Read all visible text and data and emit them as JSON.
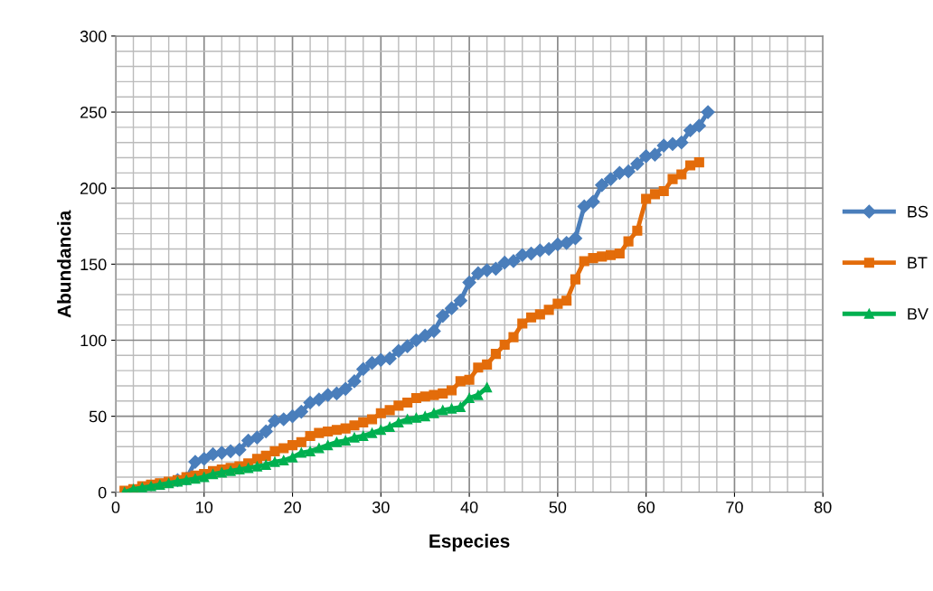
{
  "chart_data": {
    "type": "line",
    "xlabel": "Especies",
    "ylabel": "Abundancia",
    "xlim": [
      0,
      80
    ],
    "xticks": [
      0,
      10,
      20,
      30,
      40,
      50,
      60,
      70,
      80
    ],
    "ylim": [
      0,
      300
    ],
    "yticks": [
      0,
      50,
      100,
      150,
      200,
      250,
      300
    ],
    "grid": true,
    "legend": "right",
    "line_style": "solid",
    "series": [
      {
        "name": "BS",
        "color": "#4a7ebb",
        "marker": "diamond",
        "x": [
          7,
          8,
          9,
          10,
          11,
          12,
          13,
          14,
          15,
          16,
          17,
          18,
          19,
          20,
          21,
          22,
          23,
          24,
          25,
          26,
          27,
          28,
          29,
          30,
          31,
          32,
          33,
          34,
          35,
          36,
          37,
          38,
          39,
          40,
          41,
          42,
          43,
          44,
          45,
          46,
          47,
          48,
          49,
          50,
          51,
          52,
          53,
          54,
          55,
          56,
          57,
          58,
          59,
          60,
          61,
          62,
          63,
          64,
          65,
          66,
          67
        ],
        "values": [
          8,
          9,
          20,
          22,
          25,
          26,
          27,
          28,
          34,
          36,
          40,
          47,
          48,
          50,
          53,
          59,
          61,
          64,
          65,
          68,
          73,
          81,
          85,
          87,
          88,
          93,
          96,
          100,
          103,
          106,
          116,
          121,
          126,
          138,
          144,
          146,
          147,
          151,
          152,
          156,
          157,
          159,
          160,
          163,
          164,
          167,
          188,
          191,
          202,
          206,
          210,
          211,
          216,
          221,
          222,
          228,
          229,
          230,
          238,
          241,
          250
        ]
      },
      {
        "name": "BT",
        "color": "#e36c0a",
        "marker": "square",
        "x": [
          1,
          2,
          3,
          4,
          5,
          6,
          7,
          8,
          9,
          10,
          11,
          12,
          13,
          14,
          15,
          16,
          17,
          18,
          19,
          20,
          21,
          22,
          23,
          24,
          25,
          26,
          27,
          28,
          29,
          30,
          31,
          32,
          33,
          34,
          35,
          36,
          37,
          38,
          39,
          40,
          41,
          42,
          43,
          44,
          45,
          46,
          47,
          48,
          49,
          50,
          51,
          52,
          53,
          54,
          55,
          56,
          57,
          58,
          59,
          60,
          61,
          62,
          63,
          64,
          65,
          66
        ],
        "values": [
          1,
          2,
          4,
          5,
          6,
          7,
          8,
          10,
          11,
          12,
          14,
          15,
          16,
          17,
          19,
          22,
          24,
          27,
          29,
          31,
          33,
          37,
          39,
          40,
          41,
          42,
          44,
          46,
          48,
          52,
          54,
          57,
          59,
          62,
          63,
          64,
          65,
          67,
          73,
          74,
          82,
          84,
          91,
          97,
          102,
          111,
          115,
          117,
          120,
          124,
          126,
          140,
          152,
          154,
          155,
          156,
          157,
          165,
          172,
          193,
          196,
          198,
          206,
          209,
          215,
          217
        ]
      },
      {
        "name": "BV",
        "color": "#00b050",
        "marker": "triangle",
        "x": [
          1,
          2,
          3,
          4,
          5,
          6,
          7,
          8,
          9,
          10,
          11,
          12,
          13,
          14,
          15,
          16,
          17,
          18,
          19,
          20,
          21,
          22,
          23,
          24,
          25,
          26,
          27,
          28,
          29,
          30,
          31,
          32,
          33,
          34,
          35,
          36,
          37,
          38,
          39,
          40,
          41,
          42
        ],
        "values": [
          0,
          2,
          3,
          4,
          5,
          6,
          7,
          8,
          9,
          10,
          12,
          13,
          14,
          15,
          16,
          17,
          18,
          20,
          21,
          23,
          26,
          27,
          29,
          31,
          33,
          34,
          36,
          37,
          39,
          41,
          43,
          46,
          48,
          49,
          50,
          52,
          54,
          55,
          56,
          62,
          64,
          69
        ]
      }
    ]
  }
}
